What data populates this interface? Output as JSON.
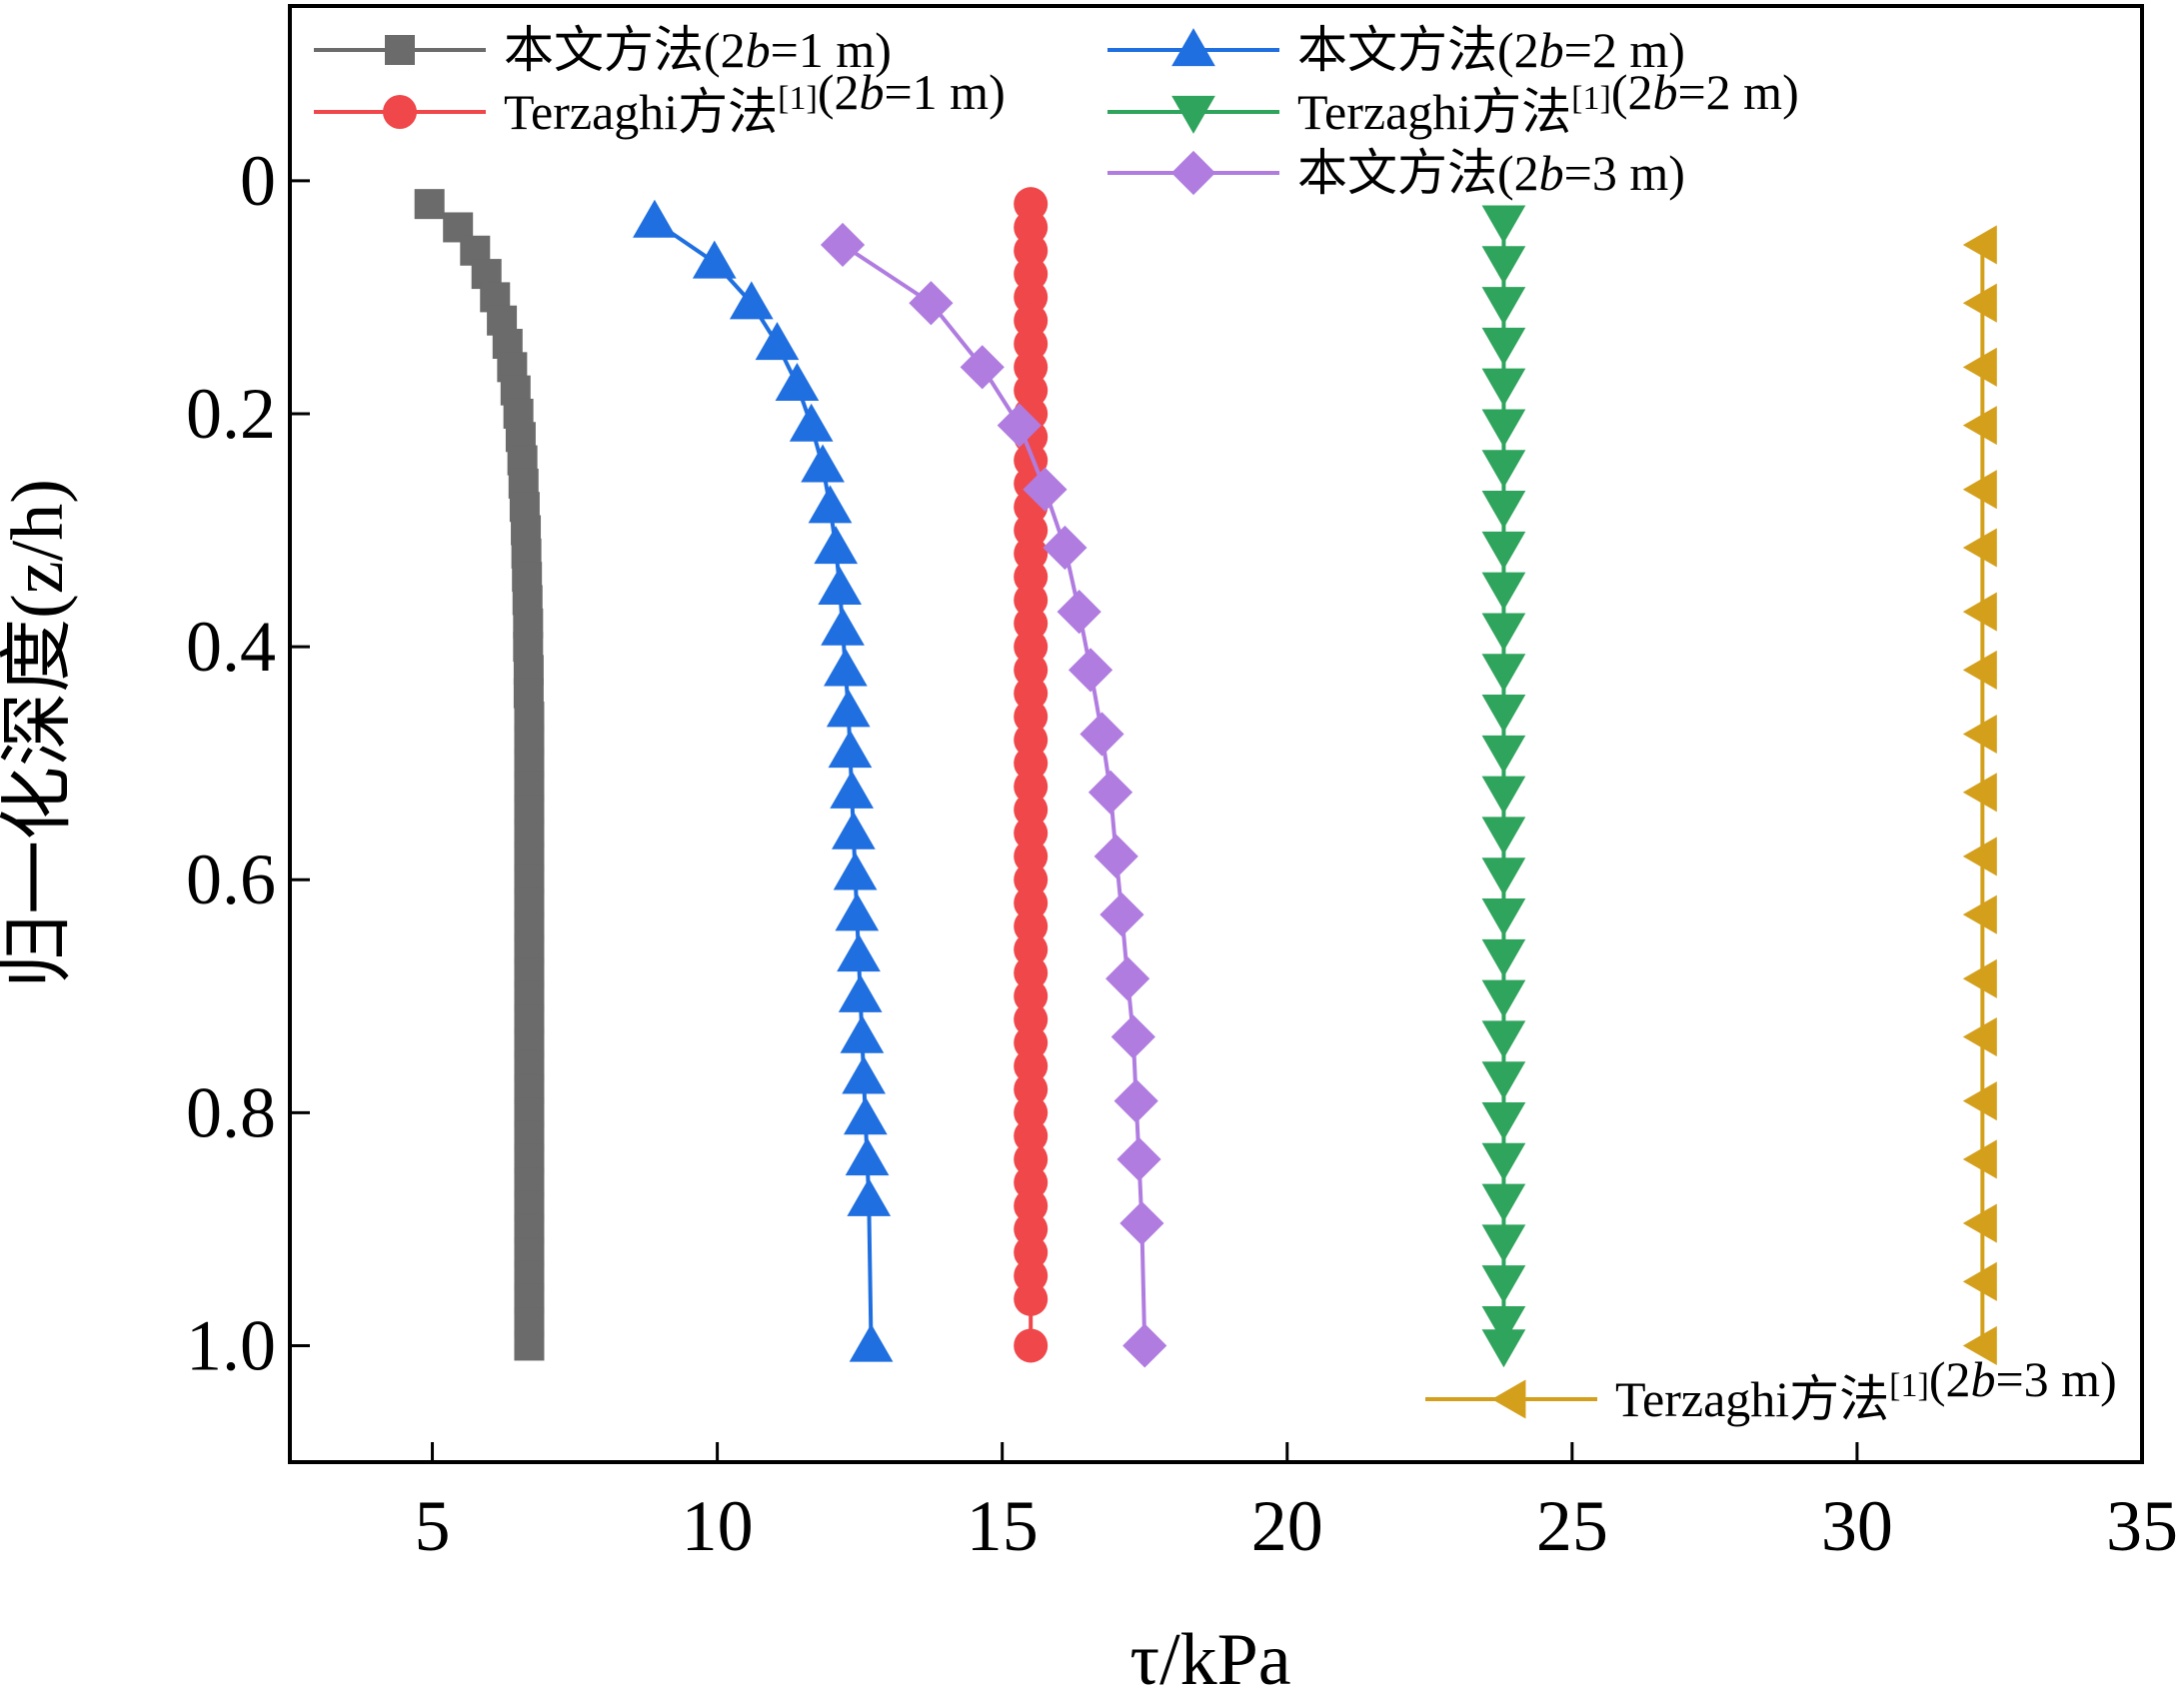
{
  "chart_data": {
    "type": "line",
    "title": "",
    "xlabel": "τ/kPa",
    "ylabel": "归一化深度(z/h)",
    "xlim": [
      2.5,
      35
    ],
    "ylim": [
      1.1,
      -0.15
    ],
    "y_inverted": true,
    "xticks": [
      "5",
      "10",
      "15",
      "20",
      "25",
      "30",
      "35"
    ],
    "xtick_values": [
      5,
      10,
      15,
      20,
      25,
      30,
      35
    ],
    "yticks": [
      "0",
      "0.2",
      "0.4",
      "0.6",
      "0.8",
      "1.0"
    ],
    "ytick_values": [
      0,
      0.2,
      0.4,
      0.6,
      0.8,
      1.0
    ],
    "grid": false,
    "series": [
      {
        "name": "本文方法(2b=1 m)",
        "color": "#6b6b6b",
        "marker": "square",
        "x": [
          4.95,
          5.45,
          5.75,
          5.95,
          6.1,
          6.22,
          6.32,
          6.4,
          6.46,
          6.51,
          6.55,
          6.58,
          6.6,
          6.62,
          6.64,
          6.65,
          6.66,
          6.67,
          6.68,
          6.68,
          6.69,
          6.69,
          6.7,
          6.7,
          6.7,
          6.7,
          6.7,
          6.7,
          6.7,
          6.7,
          6.7,
          6.7,
          6.7,
          6.7,
          6.7,
          6.7,
          6.7,
          6.7,
          6.7,
          6.7,
          6.7,
          6.7,
          6.7,
          6.7,
          6.7,
          6.7,
          6.7,
          6.7,
          6.7,
          6.7
        ],
        "y": [
          0.02,
          0.04,
          0.06,
          0.08,
          0.1,
          0.12,
          0.14,
          0.16,
          0.18,
          0.2,
          0.22,
          0.24,
          0.26,
          0.28,
          0.3,
          0.32,
          0.34,
          0.36,
          0.38,
          0.4,
          0.42,
          0.44,
          0.46,
          0.48,
          0.5,
          0.52,
          0.54,
          0.56,
          0.58,
          0.6,
          0.62,
          0.64,
          0.66,
          0.68,
          0.7,
          0.72,
          0.74,
          0.76,
          0.78,
          0.8,
          0.82,
          0.84,
          0.86,
          0.88,
          0.9,
          0.92,
          0.94,
          0.96,
          0.98,
          1.0
        ]
      },
      {
        "name": "Terzaghi方法[1](2b=1 m)",
        "color": "#f0474a",
        "marker": "circle",
        "x": [
          15.5,
          15.5,
          15.5,
          15.5,
          15.5,
          15.5,
          15.5,
          15.5,
          15.5,
          15.5,
          15.5,
          15.5,
          15.5,
          15.5,
          15.5,
          15.5,
          15.5,
          15.5,
          15.5,
          15.5,
          15.5,
          15.5,
          15.5,
          15.5,
          15.5,
          15.5,
          15.5,
          15.5,
          15.5,
          15.5,
          15.5,
          15.5,
          15.5,
          15.5,
          15.5,
          15.5,
          15.5,
          15.5,
          15.5,
          15.5,
          15.5,
          15.5,
          15.5,
          15.5,
          15.5,
          15.5,
          15.5,
          15.5,
          15.5
        ],
        "y": [
          0.02,
          0.04,
          0.06,
          0.08,
          0.1,
          0.12,
          0.14,
          0.16,
          0.18,
          0.2,
          0.22,
          0.24,
          0.26,
          0.28,
          0.3,
          0.32,
          0.34,
          0.36,
          0.38,
          0.4,
          0.42,
          0.44,
          0.46,
          0.48,
          0.5,
          0.52,
          0.54,
          0.56,
          0.58,
          0.6,
          0.62,
          0.64,
          0.66,
          0.68,
          0.7,
          0.72,
          0.74,
          0.76,
          0.78,
          0.8,
          0.82,
          0.84,
          0.86,
          0.88,
          0.9,
          0.92,
          0.94,
          0.96,
          1.0
        ]
      },
      {
        "name": "本文方法(2b=2 m)",
        "color": "#1f6fe0",
        "marker": "triangle-up",
        "x": [
          8.9,
          9.95,
          10.6,
          11.05,
          11.4,
          11.65,
          11.85,
          11.98,
          12.08,
          12.15,
          12.2,
          12.25,
          12.3,
          12.33,
          12.36,
          12.39,
          12.42,
          12.45,
          12.48,
          12.51,
          12.54,
          12.57,
          12.6,
          12.63,
          12.66,
          12.7
        ],
        "y": [
          0.035,
          0.07,
          0.105,
          0.14,
          0.175,
          0.21,
          0.245,
          0.28,
          0.315,
          0.35,
          0.385,
          0.42,
          0.455,
          0.49,
          0.525,
          0.56,
          0.595,
          0.63,
          0.665,
          0.7,
          0.735,
          0.77,
          0.805,
          0.84,
          0.875,
          1.0
        ]
      },
      {
        "name": "Terzaghi方法[1](2b=2 m)",
        "color": "#2fa45c",
        "marker": "triangle-down",
        "x": [
          23.8,
          23.8,
          23.8,
          23.8,
          23.8,
          23.8,
          23.8,
          23.8,
          23.8,
          23.8,
          23.8,
          23.8,
          23.8,
          23.8,
          23.8,
          23.8,
          23.8,
          23.8,
          23.8,
          23.8,
          23.8,
          23.8,
          23.8,
          23.8,
          23.8,
          23.8,
          23.8,
          23.8,
          23.8
        ],
        "y": [
          0.035,
          0.07,
          0.105,
          0.14,
          0.175,
          0.21,
          0.245,
          0.28,
          0.315,
          0.35,
          0.385,
          0.42,
          0.455,
          0.49,
          0.525,
          0.56,
          0.595,
          0.63,
          0.665,
          0.7,
          0.735,
          0.77,
          0.805,
          0.84,
          0.875,
          0.91,
          0.945,
          0.98,
          1.0
        ]
      },
      {
        "name": "本文方法(2b=3 m)",
        "color": "#b07ce0",
        "marker": "diamond",
        "x": [
          12.2,
          13.75,
          14.65,
          15.3,
          15.75,
          16.1,
          16.35,
          16.55,
          16.75,
          16.9,
          17.0,
          17.1,
          17.2,
          17.3,
          17.35,
          17.4,
          17.45,
          17.5
        ],
        "y": [
          0.055,
          0.105,
          0.16,
          0.21,
          0.265,
          0.315,
          0.37,
          0.42,
          0.475,
          0.525,
          0.58,
          0.63,
          0.685,
          0.735,
          0.79,
          0.84,
          0.895,
          1.0
        ]
      },
      {
        "name": "Terzaghi方法[1](2b=3 m)",
        "color": "#d4a01c",
        "marker": "triangle-left",
        "x": [
          32.2,
          32.2,
          32.2,
          32.2,
          32.2,
          32.2,
          32.2,
          32.2,
          32.2,
          32.2,
          32.2,
          32.2,
          32.2,
          32.2,
          32.2,
          32.2,
          32.2,
          32.2,
          32.2
        ],
        "y": [
          0.055,
          0.105,
          0.16,
          0.21,
          0.265,
          0.315,
          0.37,
          0.42,
          0.475,
          0.525,
          0.58,
          0.63,
          0.685,
          0.735,
          0.79,
          0.84,
          0.895,
          0.945,
          1.0
        ]
      }
    ]
  }
}
